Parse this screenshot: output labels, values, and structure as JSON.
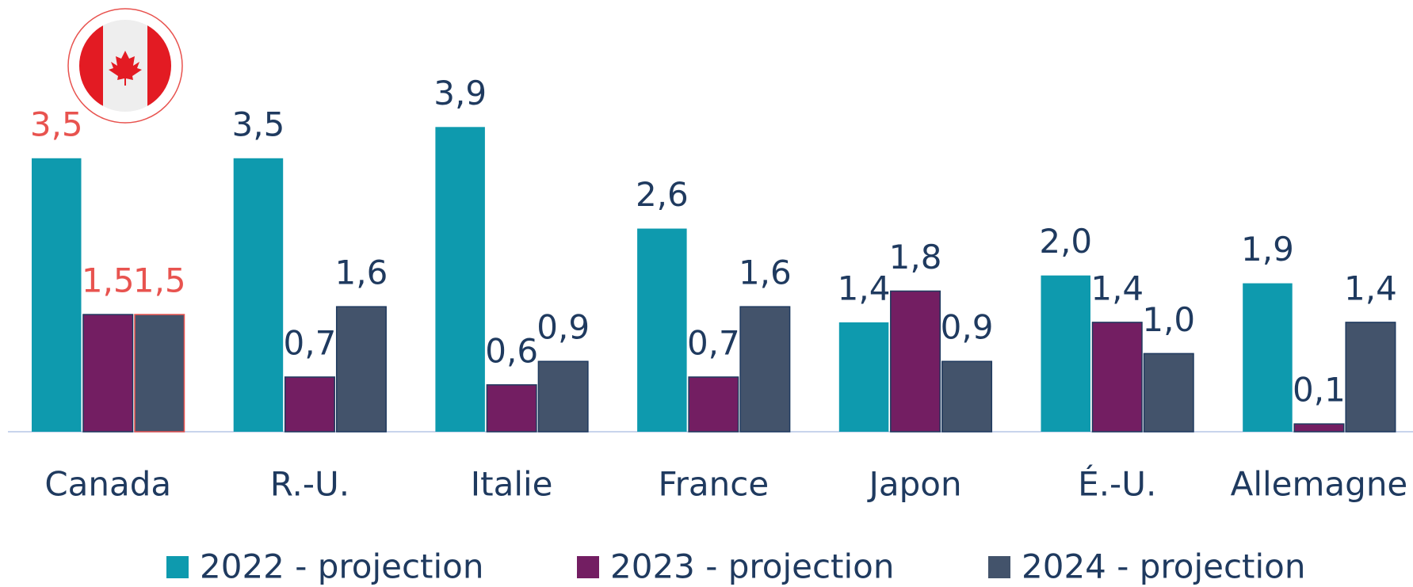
{
  "chart_data": {
    "type": "bar",
    "categories": [
      "Canada",
      "R.-U.",
      "Italie",
      "France",
      "Japon",
      "É.-U.",
      "Allemagne"
    ],
    "series": [
      {
        "name": "2022 - projection",
        "color": "#0e9aae",
        "values": [
          3.5,
          3.5,
          3.9,
          2.6,
          1.4,
          2.0,
          1.9
        ],
        "value_labels": [
          "3,5",
          "3,5",
          "3,9",
          "2,6",
          "1,4",
          "2,0",
          "1,9"
        ]
      },
      {
        "name": "2023 - projection",
        "color": "#731e62",
        "values": [
          1.5,
          0.7,
          0.6,
          0.7,
          1.8,
          1.4,
          0.1
        ],
        "value_labels": [
          "1,5",
          "0,7",
          "0,6",
          "0,7",
          "1,8",
          "1,4",
          "0,1"
        ]
      },
      {
        "name": "2024 - projection",
        "color": "#43536b",
        "values": [
          1.5,
          1.6,
          0.9,
          1.6,
          0.9,
          1.0,
          1.4
        ],
        "value_labels": [
          "1,5",
          "1,6",
          "0,9",
          "1,6",
          "0,9",
          "1,0",
          "1,4"
        ]
      }
    ],
    "ylim": [
      0,
      4.4
    ],
    "highlight": "Canada",
    "highlight_color": "#e8534f",
    "label_color": "#1f3a5f"
  }
}
